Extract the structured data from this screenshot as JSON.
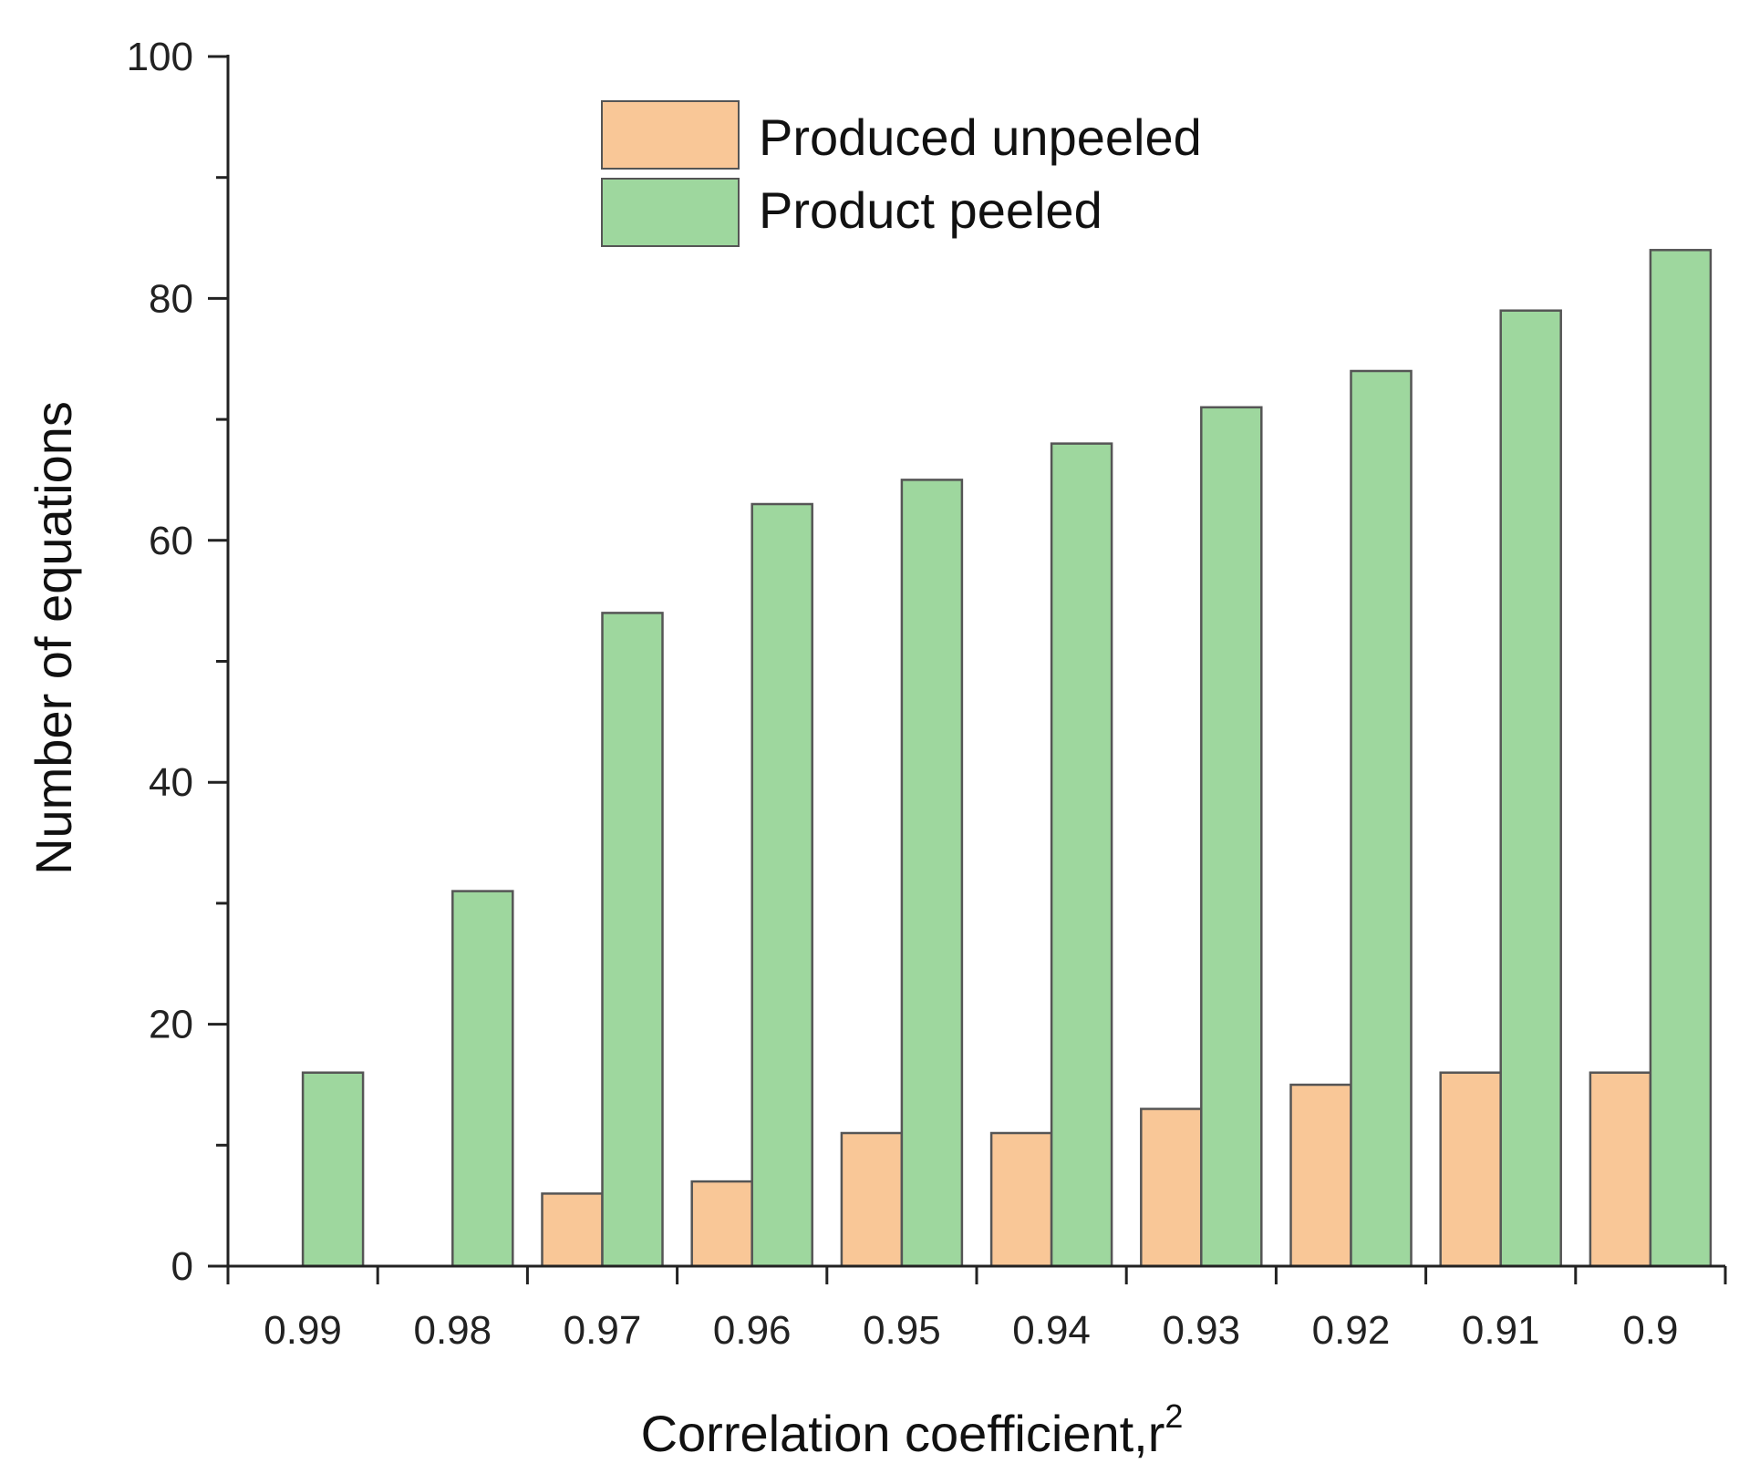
{
  "chart_data": {
    "type": "bar",
    "title": "",
    "categories": [
      "0.99",
      "0.98",
      "0.97",
      "0.96",
      "0.95",
      "0.94",
      "0.93",
      "0.92",
      "0.91",
      "0.9"
    ],
    "series": [
      {
        "name": "Produced unpeeled",
        "color": "#f9c797",
        "values": [
          0,
          0,
          6,
          7,
          11,
          11,
          13,
          15,
          16,
          16
        ]
      },
      {
        "name": "Product peeled",
        "color": "#9ed79e",
        "values": [
          16,
          31,
          54,
          63,
          65,
          68,
          71,
          74,
          79,
          84
        ]
      }
    ],
    "xlabel": "Correlation coefficient,r",
    "xlabel_superscript": "2",
    "ylabel": "Number of equations",
    "ylim": [
      0,
      100
    ],
    "yticks": [
      "0",
      "20",
      "40",
      "60",
      "80",
      "100"
    ],
    "y_major_step": 20,
    "y_minor_step": 10,
    "legend_position": "top-center",
    "grid": false,
    "bar_stroke": "#555555"
  }
}
